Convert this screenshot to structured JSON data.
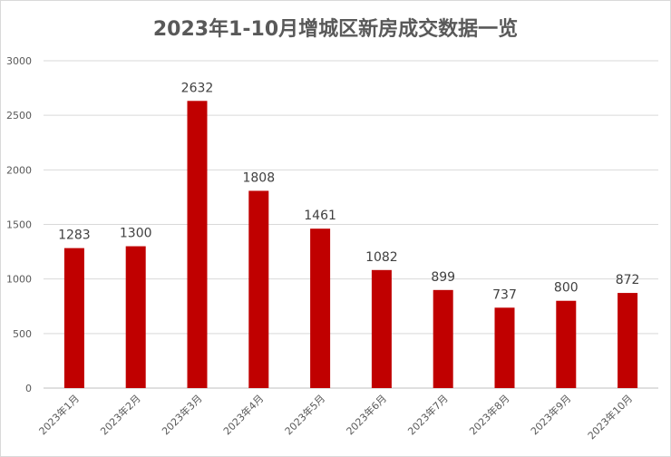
{
  "chart_data": {
    "type": "bar",
    "title": "2023年1-10月增城区新房成交数据一览",
    "categories": [
      "2023年1月",
      "2023年2月",
      "2023年3月",
      "2023年4月",
      "2023年5月",
      "2023年6月",
      "2023年7月",
      "2023年8月",
      "2023年9月",
      "2023年10月"
    ],
    "values": [
      1283,
      1300,
      2632,
      1808,
      1461,
      1082,
      899,
      737,
      800,
      872
    ],
    "ylim": [
      0,
      3000
    ],
    "yticks": [
      0,
      500,
      1000,
      1500,
      2000,
      2500,
      3000
    ],
    "grid": true,
    "data_labels": true,
    "legend": "none",
    "bar_color": "#C00000"
  }
}
